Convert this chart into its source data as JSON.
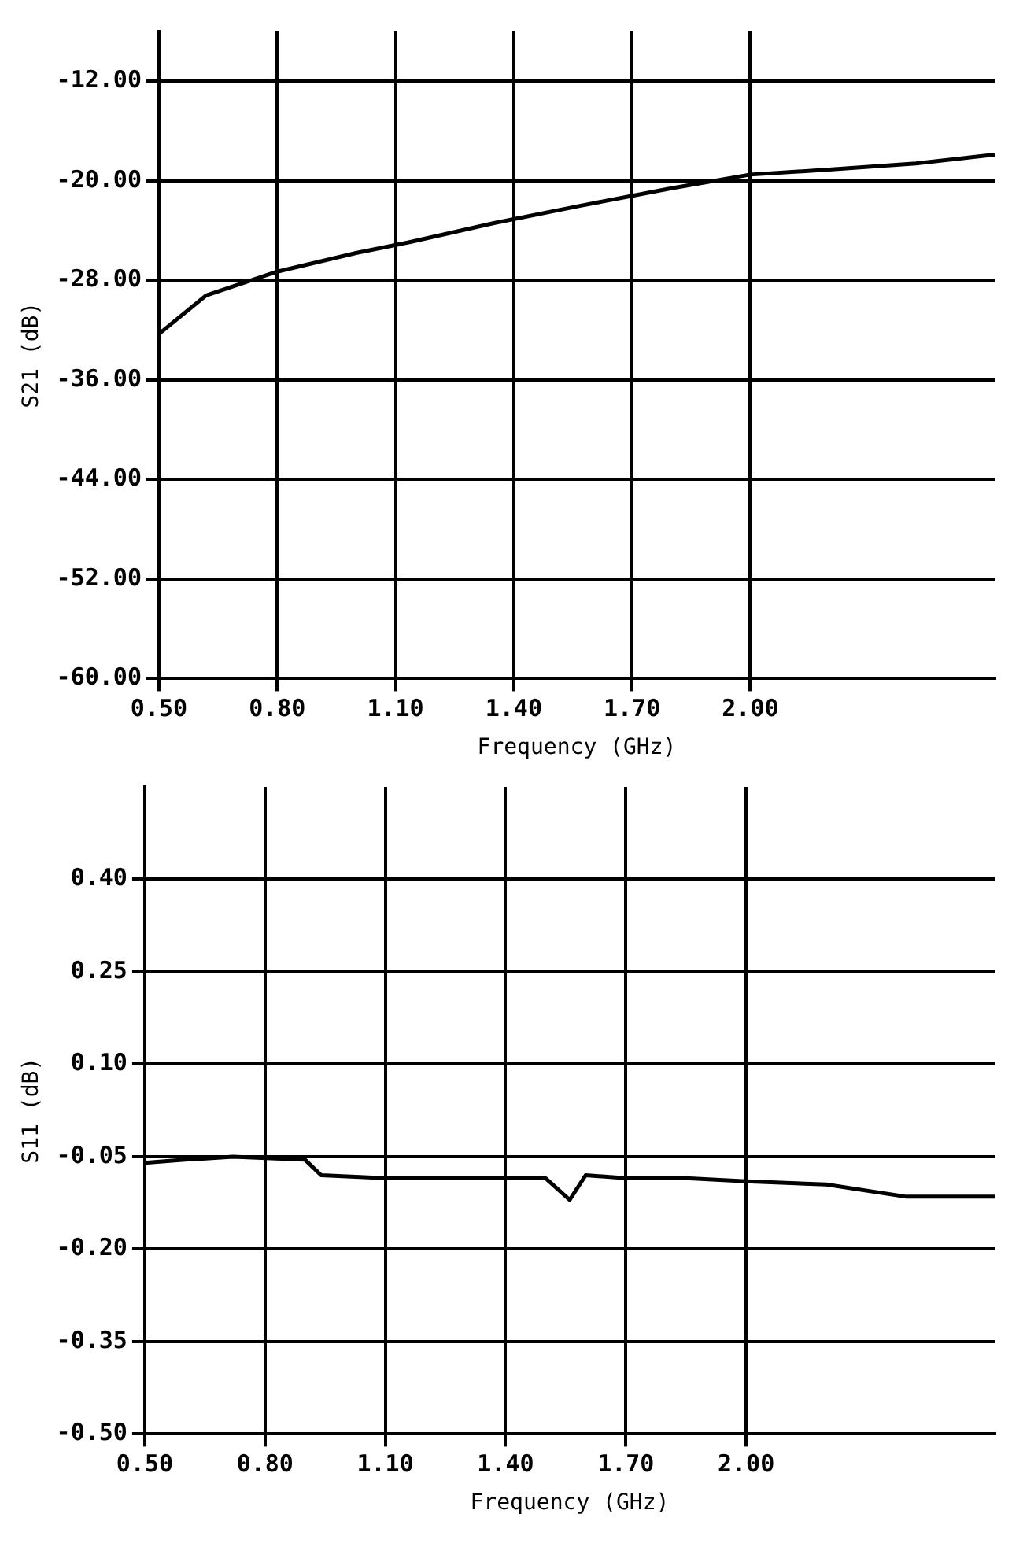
{
  "chart_data": [
    {
      "type": "line",
      "xlabel": "Frequency (GHz)",
      "ylabel": "S21 (dB)",
      "xlim": [
        0.5,
        2.62
      ],
      "xticks": [
        {
          "value": 0.5,
          "label": "0.50"
        },
        {
          "value": 0.8,
          "label": "0.80"
        },
        {
          "value": 1.1,
          "label": "1.10"
        },
        {
          "value": 1.4,
          "label": "1.40"
        },
        {
          "value": 1.7,
          "label": "1.70"
        },
        {
          "value": 2.0,
          "label": "2.00"
        }
      ],
      "ylim": [
        -60,
        -8
      ],
      "yticks": [
        {
          "value": -60,
          "label": "-60.00"
        },
        {
          "value": -52,
          "label": "-52.00"
        },
        {
          "value": -44,
          "label": "-44.00"
        },
        {
          "value": -36,
          "label": "-36.00"
        },
        {
          "value": -28,
          "label": "-28.00"
        },
        {
          "value": -20,
          "label": "-20.00"
        },
        {
          "value": -12,
          "label": "-12.00"
        }
      ],
      "grid": true,
      "legend": false,
      "marker": "none",
      "series": [
        {
          "color": "#000000",
          "x": [
            0.5,
            0.62,
            0.8,
            1.0,
            1.14,
            1.35,
            1.57,
            1.8,
            2.0,
            2.2,
            2.42,
            2.62
          ],
          "values": [
            -32.3,
            -29.2,
            -27.3,
            -25.8,
            -24.9,
            -23.4,
            -22.0,
            -20.6,
            -19.5,
            -19.1,
            -18.6,
            -17.9
          ]
        }
      ]
    },
    {
      "type": "line",
      "xlabel": "Frequency (GHz)",
      "ylabel": "S11 (dB)",
      "xlim": [
        0.5,
        2.62
      ],
      "xticks": [
        {
          "value": 0.5,
          "label": "0.50"
        },
        {
          "value": 0.8,
          "label": "0.80"
        },
        {
          "value": 1.1,
          "label": "1.10"
        },
        {
          "value": 1.4,
          "label": "1.40"
        },
        {
          "value": 1.7,
          "label": "1.70"
        },
        {
          "value": 2.0,
          "label": "2.00"
        }
      ],
      "ylim": [
        -0.5,
        0.55
      ],
      "yticks": [
        {
          "value": -0.5,
          "label": "-0.50"
        },
        {
          "value": -0.35,
          "label": "-0.35"
        },
        {
          "value": -0.2,
          "label": "-0.20"
        },
        {
          "value": -0.05,
          "label": "-0.05"
        },
        {
          "value": 0.1,
          "label": "0.10"
        },
        {
          "value": 0.25,
          "label": "0.25"
        },
        {
          "value": 0.4,
          "label": "0.40"
        }
      ],
      "grid": true,
      "legend": false,
      "marker": "none",
      "series": [
        {
          "color": "#000000",
          "x": [
            0.5,
            0.6,
            0.72,
            0.9,
            0.94,
            1.1,
            1.3,
            1.5,
            1.56,
            1.6,
            1.7,
            1.85,
            2.0,
            2.2,
            2.4,
            2.62
          ],
          "values": [
            -0.06,
            -0.055,
            -0.05,
            -0.055,
            -0.08,
            -0.085,
            -0.085,
            -0.085,
            -0.12,
            -0.08,
            -0.085,
            -0.085,
            -0.09,
            -0.095,
            -0.115,
            -0.115
          ]
        }
      ]
    }
  ]
}
